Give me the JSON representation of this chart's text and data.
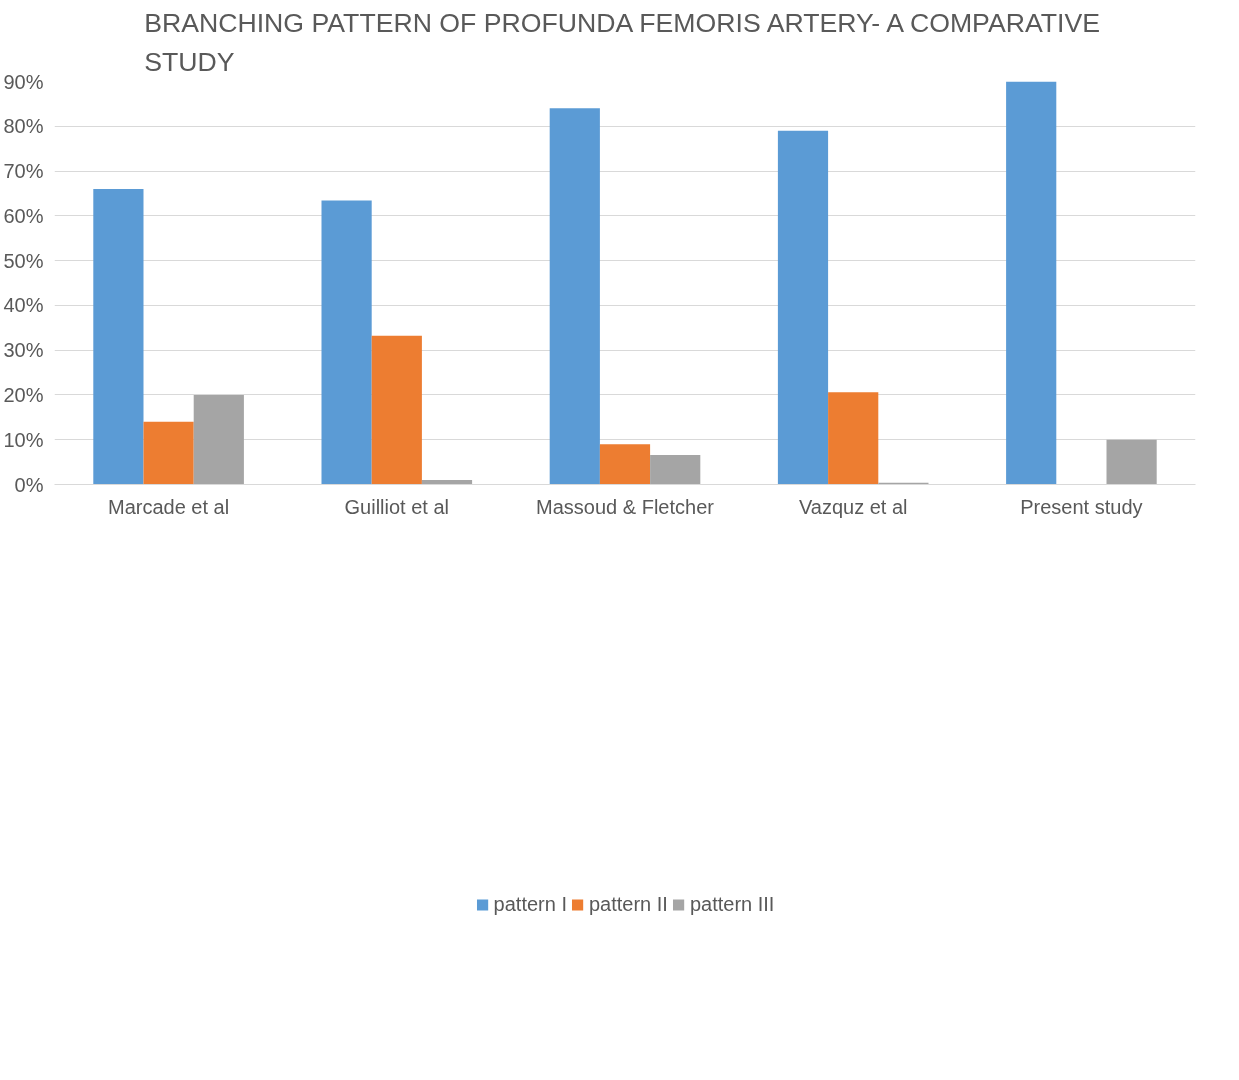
{
  "chart_data": {
    "type": "bar",
    "title": "BRANCHING PATTERN OF PROFUNDA FEMORIS ARTERY- A COMPARATIVE STUDY",
    "categories": [
      "Marcade et al",
      "Guilliot et al",
      "Massoud & Fletcher",
      "Vazquz et al",
      "Present study"
    ],
    "series": [
      {
        "name": "pattern I",
        "color": "#5b9bd5",
        "values": [
          66,
          63.4,
          84,
          79,
          90
        ]
      },
      {
        "name": "pattern II",
        "color": "#ed7d31",
        "values": [
          14,
          33.2,
          9,
          20.6,
          0
        ]
      },
      {
        "name": "pattern III",
        "color": "#a5a5a5",
        "values": [
          20,
          1,
          6.6,
          0.4,
          10
        ]
      }
    ],
    "ylim": [
      0,
      90
    ],
    "yticks": [
      {
        "value": 0,
        "label": "0%"
      },
      {
        "value": 10,
        "label": "10%"
      },
      {
        "value": 20,
        "label": "20%"
      },
      {
        "value": 30,
        "label": "30%"
      },
      {
        "value": 40,
        "label": "40%"
      },
      {
        "value": 50,
        "label": "50%"
      },
      {
        "value": 60,
        "label": "60%"
      },
      {
        "value": 70,
        "label": "70%"
      },
      {
        "value": 80,
        "label": "80%"
      },
      {
        "value": 90,
        "label": "90%"
      }
    ],
    "grid": "y",
    "legend": "bottom"
  }
}
